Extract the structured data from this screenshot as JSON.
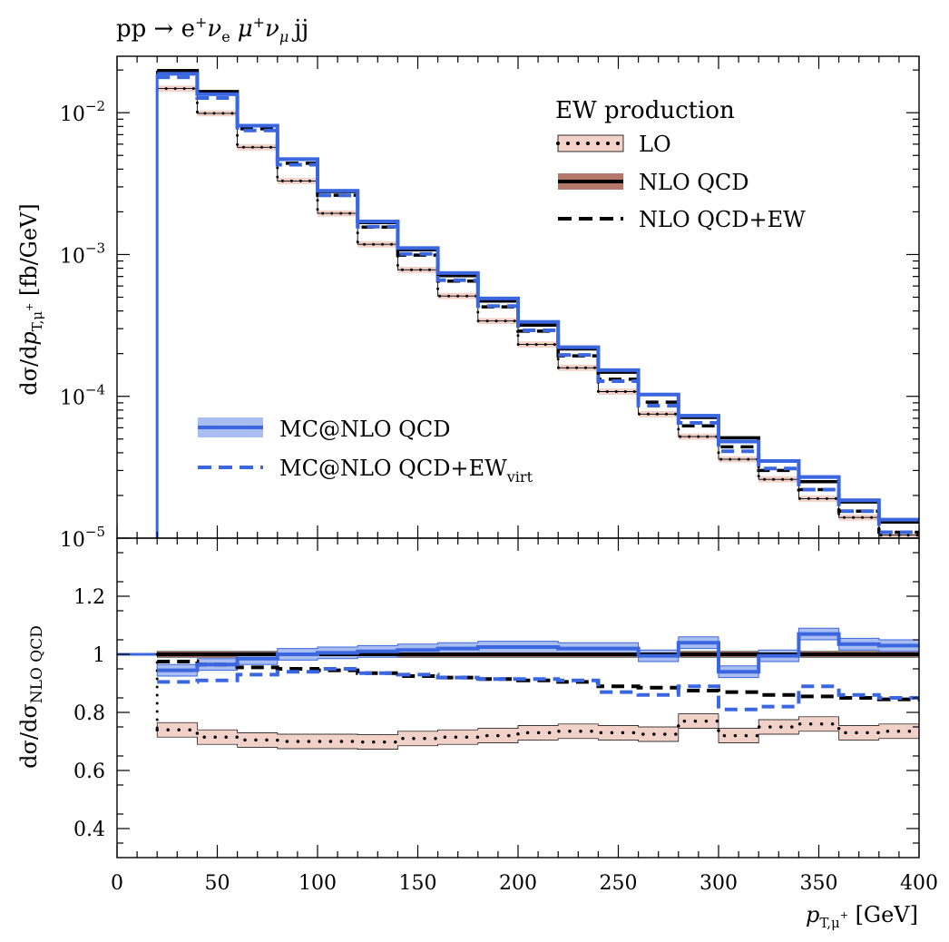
{
  "chart_data": [
    {
      "type": "line",
      "title": "pp → e⁺ν_e μ⁺ν_μ jj",
      "title_parts": [
        "pp → e",
        "+",
        "ν",
        "e",
        "μ",
        "+",
        "ν",
        "μ",
        "jj"
      ],
      "ylabel": "dσ/dp_{T,μ⁺} [fb/GeV]",
      "ylabel_parts": [
        "dσ/d",
        "p",
        "T,μ",
        "+",
        " [fb/GeV]"
      ],
      "yscale": "log",
      "ylim": [
        1e-05,
        0.025
      ],
      "xlim": [
        0,
        400
      ],
      "yticks": [
        {
          "value": 0.01,
          "base": "10",
          "exp": "−2"
        },
        {
          "value": 0.001,
          "base": "10",
          "exp": "−3"
        },
        {
          "value": 0.0001,
          "base": "10",
          "exp": "−4"
        },
        {
          "value": 1e-05,
          "base": "10",
          "exp": "−5"
        }
      ],
      "bin_edges": [
        20,
        40,
        60,
        80,
        100,
        120,
        140,
        160,
        180,
        200,
        220,
        240,
        260,
        280,
        300,
        320,
        340,
        360,
        380,
        400
      ],
      "legend_title": "EW production",
      "series": [
        {
          "name": "LO",
          "color": "#000000",
          "band_color": "#f2d2c8",
          "style": "dotted",
          "values": [
            0.0148,
            0.0099,
            0.0057,
            0.0033,
            0.00195,
            0.00118,
            0.00078,
            0.00051,
            0.00034,
            0.000232,
            0.000159,
            0.000108,
            7.5e-05,
            5.2e-05,
            3.6e-05,
            2.6e-05,
            1.9e-05,
            1.4e-05,
            1.05e-05
          ]
        },
        {
          "name": "NLO QCD",
          "color": "#000000",
          "band_color": "#b5776a",
          "style": "solid",
          "values": [
            0.0198,
            0.0141,
            0.0081,
            0.0047,
            0.00278,
            0.00168,
            0.00108,
            0.00071,
            0.00047,
            0.000318,
            0.000216,
            0.000148,
            0.000103,
            7.1e-05,
            5.1e-05,
            3.5e-05,
            2.5e-05,
            1.8e-05,
            1.3e-05
          ]
        },
        {
          "name": "NLO QCD+EW",
          "color": "#000000",
          "style": "dashed",
          "values": [
            0.0193,
            0.0136,
            0.0077,
            0.0044,
            0.00262,
            0.00156,
            0.00099,
            0.00065,
            0.000428,
            0.000288,
            0.000193,
            0.000132,
            9.1e-05,
            6.2e-05,
            4.4e-05,
            3e-05,
            2.2e-05,
            1.55e-05,
            1.1e-05
          ]
        },
        {
          "name": "MC@NLO QCD",
          "color": "#3a66e0",
          "band_color": "#a9bdf0",
          "style": "solid",
          "values": [
            0.0188,
            0.0135,
            0.0081,
            0.0047,
            0.00281,
            0.00171,
            0.00111,
            0.00074,
            0.00049,
            0.000335,
            0.000222,
            0.000153,
            0.000103,
            7.3e-05,
            4.8e-05,
            3.5e-05,
            2.7e-05,
            1.85e-05,
            1.35e-05
          ]
        },
        {
          "name": "MC@NLO QCD+EW",
          "name_sub": "virt",
          "color": "#3a66e0",
          "style": "dashed",
          "values": [
            0.0178,
            0.0127,
            0.0075,
            0.0043,
            0.00261,
            0.00157,
            0.00101,
            0.00066,
            0.000433,
            0.000292,
            0.000196,
            0.000128,
            8.6e-05,
            6.5e-05,
            4.1e-05,
            3.1e-05,
            2.2e-05,
            1.55e-05,
            1.1e-05
          ]
        }
      ]
    },
    {
      "type": "line",
      "ylabel": "dσ/dσ_{NLO QCD}",
      "ylabel_parts": [
        "dσ/dσ",
        "NLO QCD"
      ],
      "xlabel": "p_{T,μ⁺} [GeV]",
      "xlabel_parts": [
        "p",
        "T,μ",
        "+",
        " [GeV]"
      ],
      "xlim": [
        0,
        400
      ],
      "ylim": [
        0.3,
        1.4
      ],
      "yticks": [
        0.4,
        0.6,
        0.8,
        1,
        1.2
      ],
      "ytick_labels": [
        "0.4",
        "0.6",
        "0.8",
        "1",
        "1.2"
      ],
      "xticks": [
        0,
        50,
        100,
        150,
        200,
        250,
        300,
        350,
        400
      ],
      "xtick_labels": [
        "0",
        "50",
        "100",
        "150",
        "200",
        "250",
        "300",
        "350",
        "400"
      ],
      "bin_edges": [
        20,
        40,
        60,
        80,
        100,
        120,
        140,
        160,
        180,
        200,
        220,
        240,
        260,
        280,
        300,
        320,
        340,
        360,
        380,
        400
      ],
      "series": [
        {
          "name": "LO",
          "values": [
            0.74,
            0.715,
            0.705,
            0.7,
            0.7,
            0.698,
            0.71,
            0.715,
            0.72,
            0.73,
            0.735,
            0.73,
            0.725,
            0.77,
            0.72,
            0.75,
            0.76,
            0.73,
            0.735
          ],
          "band": 0.025
        },
        {
          "name": "NLO QCD",
          "values": [
            1,
            1,
            1,
            1,
            1,
            1,
            1,
            1,
            1,
            1,
            1,
            1,
            1,
            1,
            1,
            1,
            1,
            1,
            1
          ],
          "band": 0.01
        },
        {
          "name": "NLO QCD+EW",
          "values": [
            0.975,
            0.965,
            0.955,
            0.95,
            0.945,
            0.935,
            0.925,
            0.92,
            0.915,
            0.91,
            0.905,
            0.89,
            0.885,
            0.875,
            0.87,
            0.86,
            0.855,
            0.85,
            0.845
          ]
        },
        {
          "name": "MC@NLO QCD",
          "values": [
            0.945,
            0.965,
            0.985,
            1.0,
            1.005,
            1.01,
            1.015,
            1.02,
            1.025,
            1.025,
            1.02,
            1.02,
            0.995,
            1.04,
            0.94,
            0.995,
            1.07,
            1.035,
            1.03
          ],
          "band": 0.02
        },
        {
          "name": "MC@NLO QCD+EW_virt",
          "values": [
            0.905,
            0.91,
            0.93,
            0.94,
            0.95,
            0.935,
            0.93,
            0.92,
            0.915,
            0.915,
            0.91,
            0.87,
            0.86,
            0.89,
            0.81,
            0.82,
            0.89,
            0.86,
            0.85
          ]
        }
      ]
    }
  ]
}
